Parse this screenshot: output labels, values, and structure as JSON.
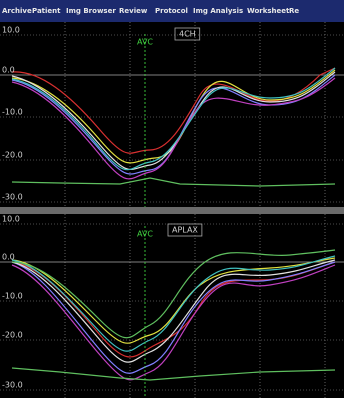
{
  "menu": [
    "Archive",
    "Patient",
    "Img Browser",
    "Review",
    "Protocol",
    "Img Analysis",
    "Worksheet",
    "Re"
  ],
  "panels": [
    {
      "view_label": "4CH",
      "marker_label": "AVC",
      "y_labels": [
        "10.0",
        "0.0",
        "-10.0",
        "-20.0",
        "-30.0"
      ]
    },
    {
      "view_label": "APLAX",
      "marker_label": "AVC",
      "y_labels": [
        "10.0",
        "0.0",
        "-10.0",
        "-20.0",
        "-30.0"
      ]
    }
  ]
}
